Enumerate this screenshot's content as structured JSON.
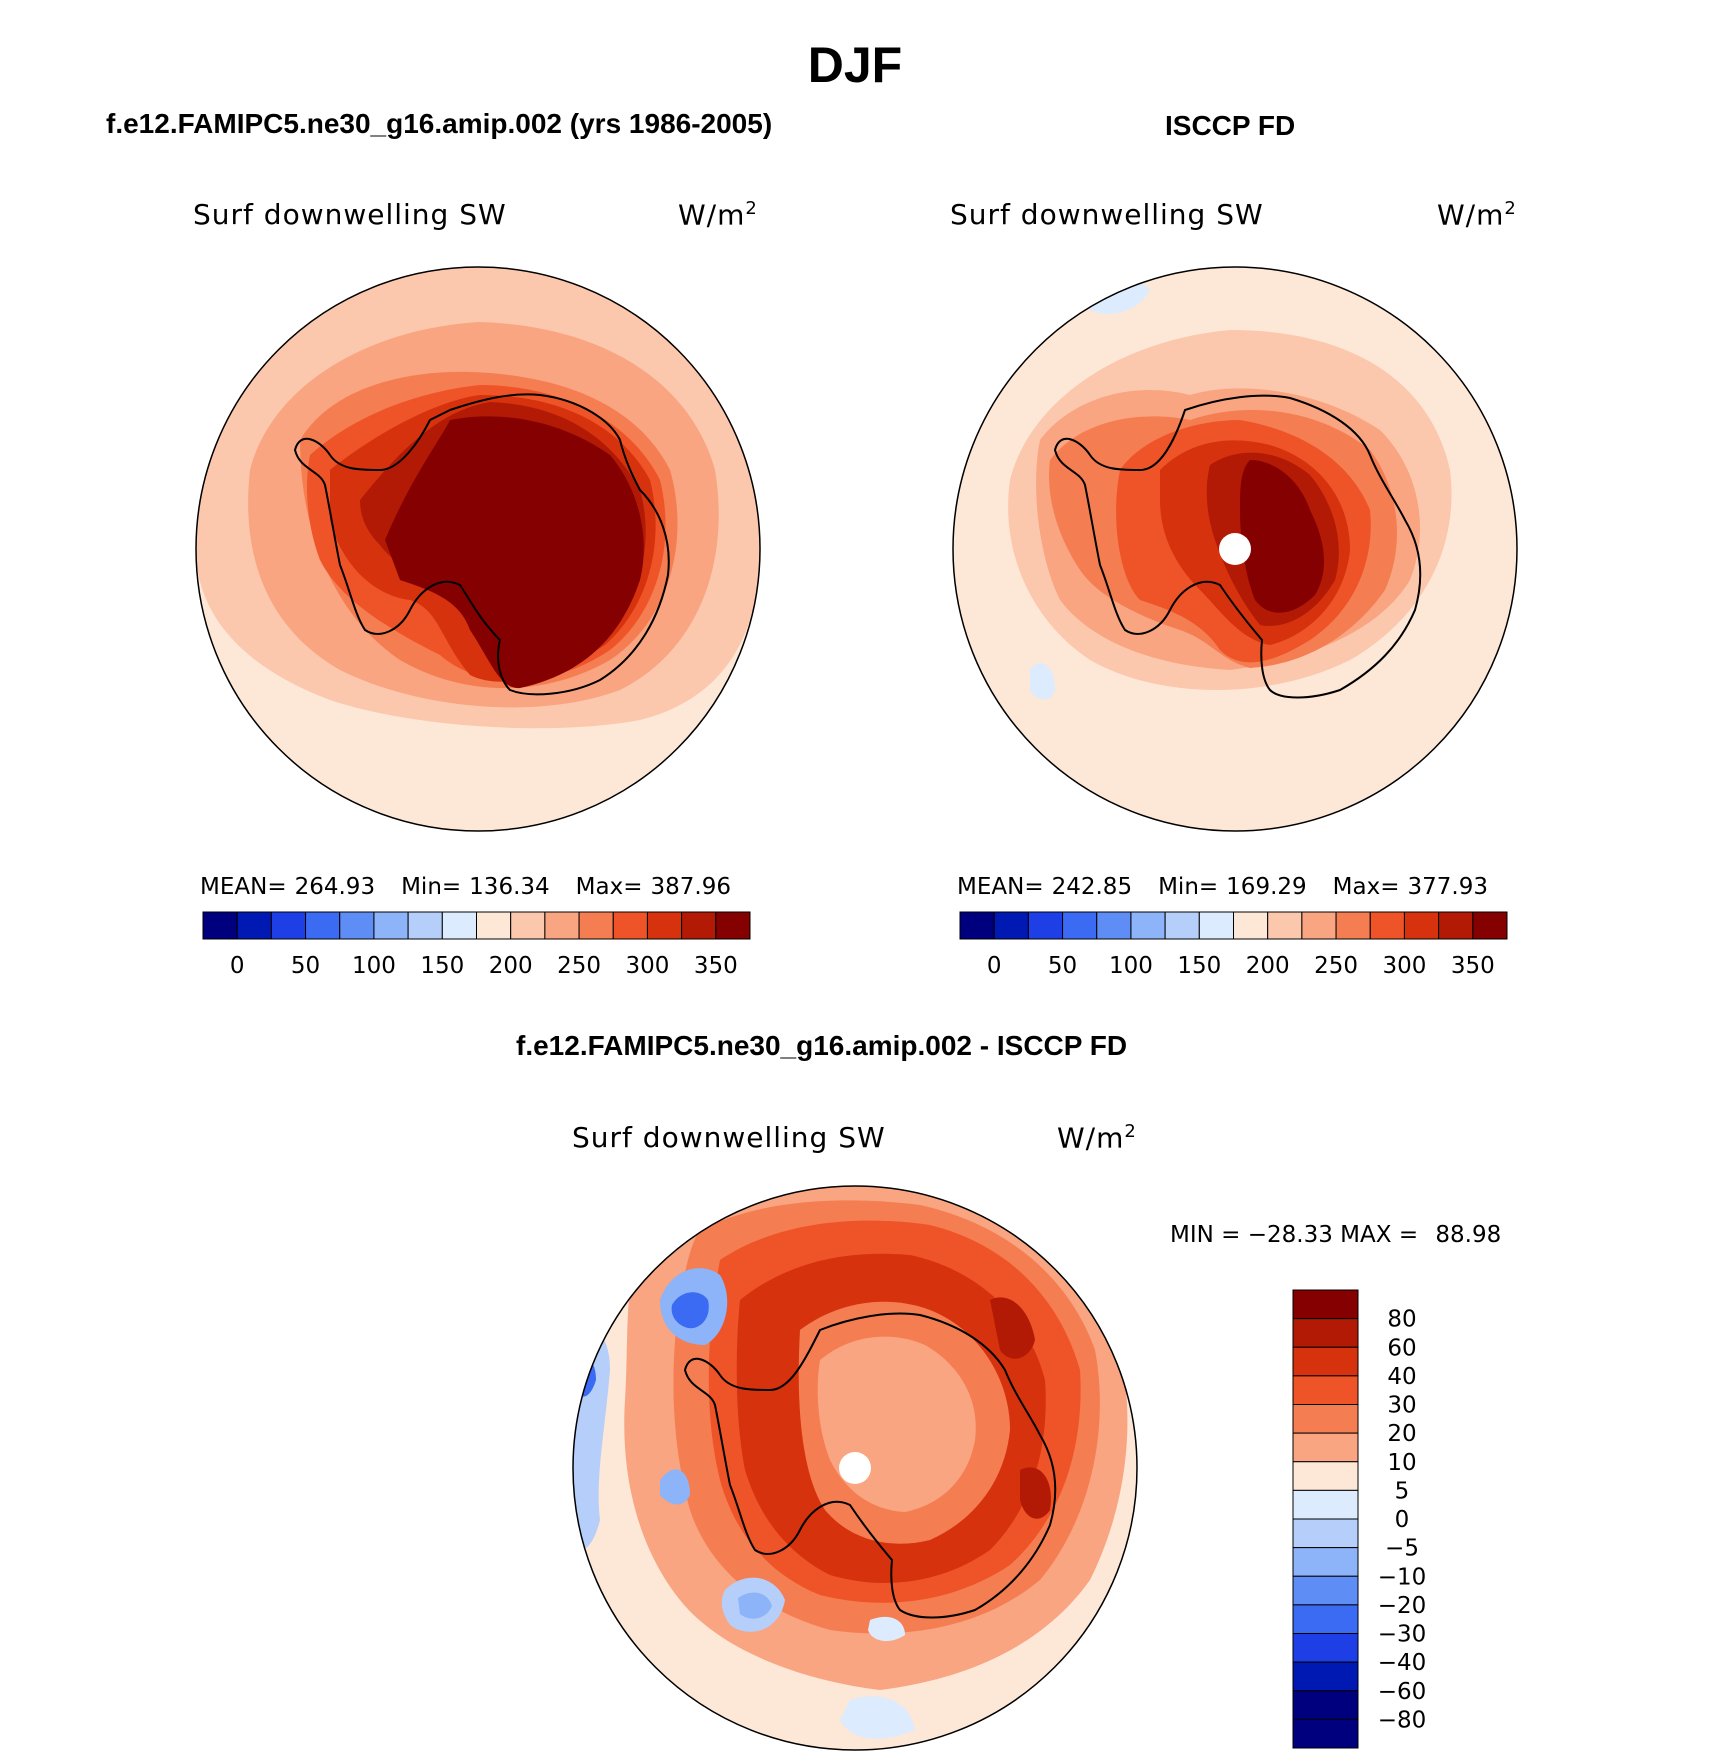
{
  "figure": {
    "title": "DJF",
    "panels": [
      {
        "heading": "f.e12.FAMIPC5.ne30_g16.amip.002 (yrs 1986-2005)",
        "variable": "Surf downwelling SW",
        "units": "W/m",
        "units_sup": "2",
        "stats": {
          "mean_label": "MEAN=",
          "mean": "264.93",
          "min_label": "Min=",
          "min": "136.34",
          "max_label": "Max=",
          "max": "387.96"
        },
        "colorbar_ticks": [
          "0",
          "50",
          "100",
          "150",
          "200",
          "250",
          "300",
          "350"
        ]
      },
      {
        "heading": "ISCCP FD",
        "variable": "Surf downwelling SW",
        "units": "W/m",
        "units_sup": "2",
        "stats": {
          "mean_label": "MEAN=",
          "mean": "242.85",
          "min_label": "Min=",
          "min": "169.29",
          "max_label": "Max=",
          "max": "377.93"
        },
        "colorbar_ticks": [
          "0",
          "50",
          "100",
          "150",
          "200",
          "250",
          "300",
          "350"
        ]
      },
      {
        "heading": "f.e12.FAMIPC5.ne30_g16.amip.002 - ISCCP FD",
        "variable": "Surf downwelling SW",
        "units": "W/m",
        "units_sup": "2",
        "stats": {
          "min_label": "MIN =",
          "min": "−28.33",
          "max_label": "MAX =",
          "max": "88.98"
        },
        "colorbar_ticks": [
          "80",
          "60",
          "40",
          "30",
          "20",
          "10",
          "5",
          "0",
          "−5",
          "−10",
          "−20",
          "−30",
          "−40",
          "−60",
          "−80"
        ]
      }
    ],
    "colors": {
      "abs_scale": [
        "#00007f",
        "#0019b3",
        "#1f3fe6",
        "#3b6bf2",
        "#5e8ef5",
        "#8db3f8",
        "#b5cffa",
        "#dcebfd",
        "#fde7d7",
        "#fcc8ad",
        "#f9a581",
        "#f57d52",
        "#ee5427",
        "#d6320e",
        "#b21a06",
        "#850000"
      ],
      "diff_scale": [
        "#850000",
        "#b21a06",
        "#d6320e",
        "#ee5427",
        "#f57d52",
        "#f9a581",
        "#fde7d7",
        "#dcebfd",
        "#b5cffa",
        "#8db3f8",
        "#5e8ef5",
        "#3b6bf2",
        "#1f3fe6",
        "#0019b3",
        "#00007f"
      ]
    }
  },
  "chart_data": [
    {
      "type": "heatmap",
      "title": "f.e12.FAMIPC5.ne30_g16.amip.002 (yrs 1986-2005)",
      "variable": "Surf downwelling SW",
      "units": "W/m2",
      "projection": "south polar stereographic",
      "mean": 264.93,
      "min": 136.34,
      "max": 387.96,
      "levels": [
        0,
        25,
        50,
        75,
        100,
        125,
        150,
        175,
        200,
        225,
        250,
        275,
        300,
        325,
        350
      ]
    },
    {
      "type": "heatmap",
      "title": "ISCCP FD",
      "variable": "Surf downwelling SW",
      "units": "W/m2",
      "projection": "south polar stereographic",
      "mean": 242.85,
      "min": 169.29,
      "max": 377.93,
      "levels": [
        0,
        25,
        50,
        75,
        100,
        125,
        150,
        175,
        200,
        225,
        250,
        275,
        300,
        325,
        350
      ]
    },
    {
      "type": "heatmap",
      "title": "f.e12.FAMIPC5.ne30_g16.amip.002 - ISCCP FD",
      "variable": "Surf downwelling SW",
      "units": "W/m2",
      "projection": "south polar stereographic",
      "min": -28.33,
      "max": 88.98,
      "levels": [
        -80,
        -60,
        -40,
        -30,
        -20,
        -10,
        -5,
        0,
        5,
        10,
        20,
        30,
        40,
        60,
        80
      ]
    }
  ]
}
